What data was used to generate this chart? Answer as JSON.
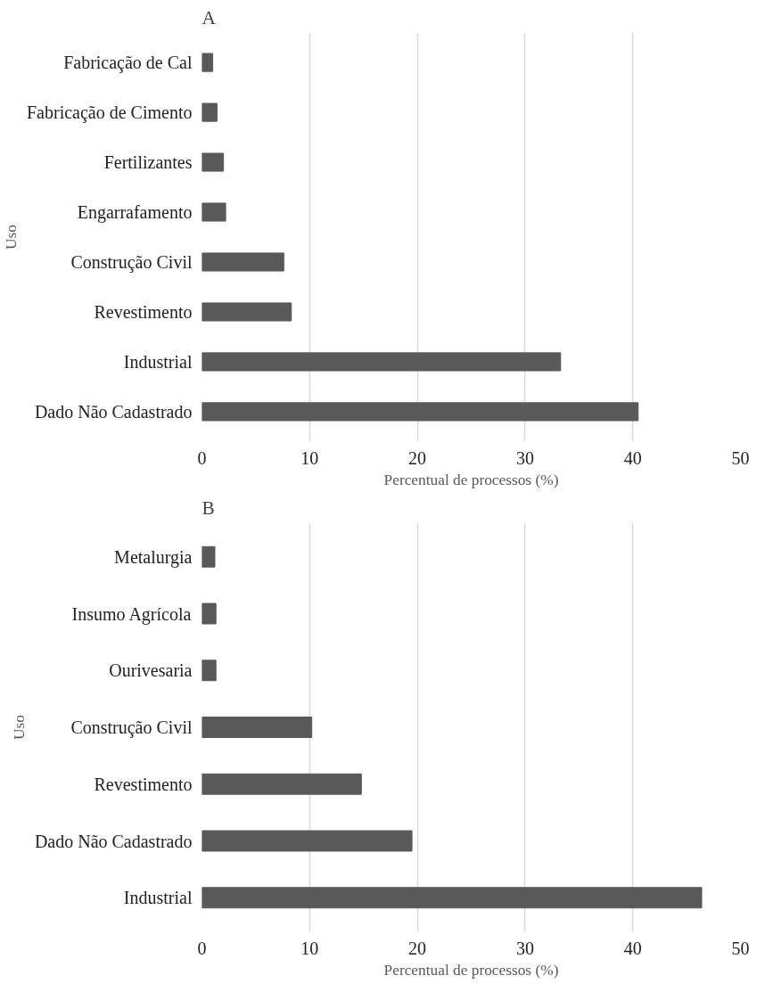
{
  "chart_data": [
    {
      "type": "bar",
      "orientation": "horizontal",
      "title": "A",
      "xlabel": "Percentual de processos (%)",
      "ylabel": "Uso",
      "categories": [
        "Fabricação de Cal",
        "Fabricação de Cimento",
        "Fertilizantes",
        "Engarrafamento",
        "Construção Civil",
        "Revestimento",
        "Industrial",
        "Dado Não Cadastrado"
      ],
      "values": [
        1.0,
        1.4,
        2.0,
        2.2,
        7.6,
        8.3,
        33.3,
        40.5
      ],
      "color": "#595959",
      "xlim": [
        0,
        50
      ],
      "xticks": [
        0,
        10,
        20,
        30,
        40,
        50
      ],
      "grid": "x"
    },
    {
      "type": "bar",
      "orientation": "horizontal",
      "title": "B",
      "xlabel": "Percentual de processos (%)",
      "ylabel": "Uso",
      "categories": [
        "Metalurgia",
        "Insumo Agrícola",
        "Ourivesaria",
        "Construção Civil",
        "Revestimento",
        "Dado Não Cadastrado",
        "Industrial"
      ],
      "values": [
        1.2,
        1.3,
        1.3,
        10.2,
        14.8,
        19.5,
        46.4
      ],
      "color": "#595959",
      "xlim": [
        0,
        50
      ],
      "xticks": [
        0,
        10,
        20,
        30,
        40,
        50
      ],
      "grid": "x"
    }
  ]
}
